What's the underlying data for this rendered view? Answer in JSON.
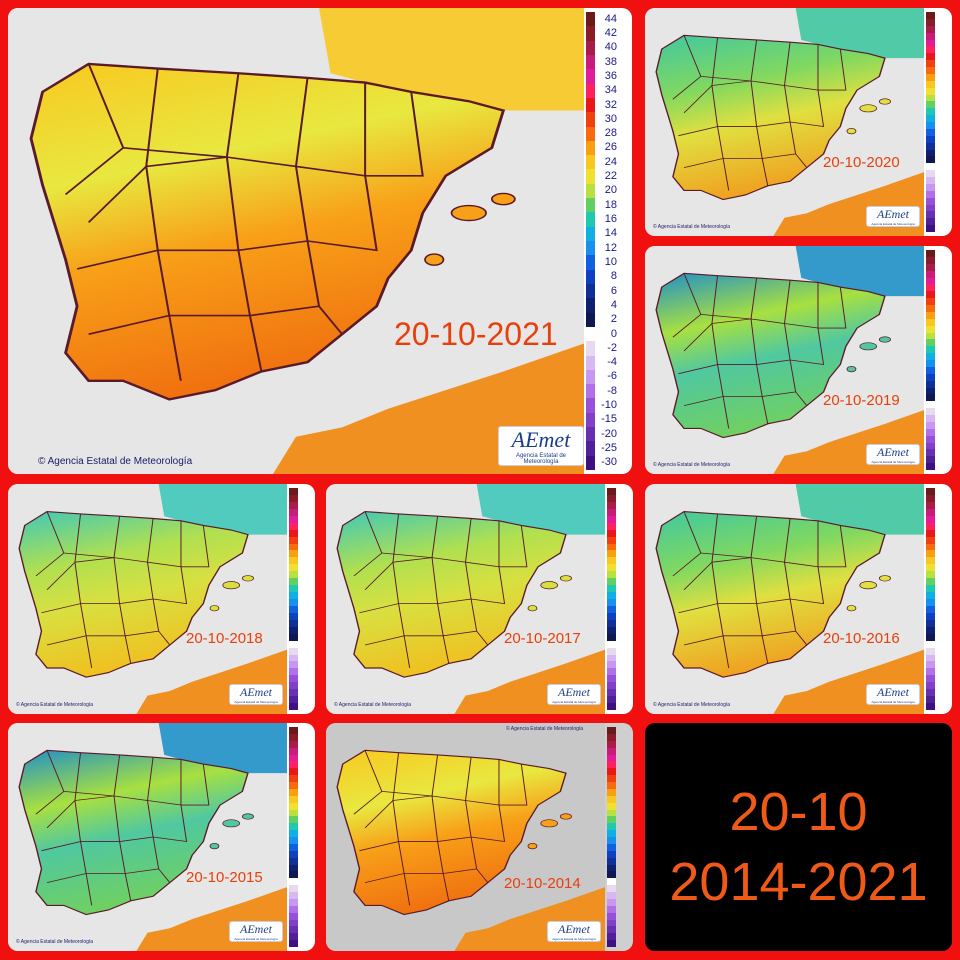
{
  "title_card": {
    "line1": "20-10",
    "line2": "2014-2021"
  },
  "legend_labels": [
    "44",
    "42",
    "40",
    "38",
    "36",
    "34",
    "32",
    "30",
    "28",
    "26",
    "24",
    "22",
    "20",
    "18",
    "16",
    "14",
    "12",
    "10",
    "8",
    "6",
    "4",
    "2",
    "0",
    "-2",
    "-4",
    "-6",
    "-8",
    "-10",
    "-15",
    "-20",
    "-25",
    "-30"
  ],
  "legend_colors": [
    "#6b1a1a",
    "#8a1c2a",
    "#a81c4a",
    "#c81c7a",
    "#e01c9a",
    "#ff2060",
    "#e81818",
    "#f04010",
    "#f86a10",
    "#f8a010",
    "#f8c820",
    "#f0e030",
    "#b8e040",
    "#60d060",
    "#20c8b0",
    "#10b0e0",
    "#1890f0",
    "#1060e0",
    "#1040c0",
    "#103098",
    "#102070",
    "#101850",
    "#ffffff",
    "#e8d8f0",
    "#d8b8f0",
    "#c898f0",
    "#b070e8",
    "#9850d8",
    "#8040c8",
    "#6830b0",
    "#502098",
    "#401080"
  ],
  "panels": [
    {
      "date": "20-10-2021",
      "logo": "AEmet",
      "logo_sub": "Agencia Estatal de Meteorología",
      "copyright": "© Agencia Estatal de Meteorología",
      "palette": "hot"
    },
    {
      "date": "20-10-2020",
      "logo": "AEmet",
      "logo_sub": "Agencia Estatal de Meteorología",
      "copyright": "© Agencia Estatal de Meteorología",
      "palette": "mixed"
    },
    {
      "date": "20-10-2019",
      "logo": "AEmet",
      "logo_sub": "Agencia Estatal de Meteorología",
      "copyright": "© Agencia Estatal de Meteorología",
      "palette": "cool"
    },
    {
      "date": "20-10-2018",
      "logo": "AEmet",
      "logo_sub": "Agencia Estatal de Meteorología",
      "copyright": "© Agencia Estatal de Meteorología",
      "palette": "mild"
    },
    {
      "date": "20-10-2017",
      "logo": "AEmet",
      "logo_sub": "Agencia Estatal de Meteorología",
      "copyright": "© Agencia Estatal de Meteorología",
      "palette": "mild"
    },
    {
      "date": "20-10-2016",
      "logo": "AEmet",
      "logo_sub": "Agencia Estatal de Meteorología",
      "copyright": "© Agencia Estatal de Meteorología",
      "palette": "mixed"
    },
    {
      "date": "20-10-2015",
      "logo": "AEmet",
      "logo_sub": "Agencia Estatal de Meteorología",
      "copyright": "© Agencia Estatal de Meteorología",
      "palette": "cool"
    },
    {
      "date": "20-10-2014",
      "logo": "AEmet",
      "logo_sub": "Agencia Estatal de Meteorología",
      "copyright": "© Agencia Estatal de Meteorología",
      "palette": "hot"
    }
  ]
}
